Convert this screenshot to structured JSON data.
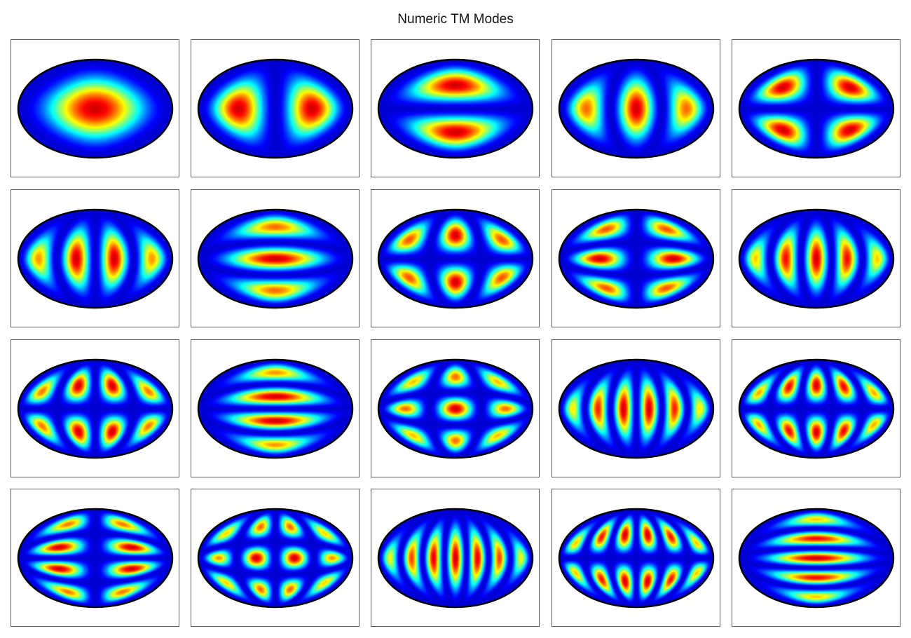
{
  "title": "Numeric TM Modes",
  "colors": {
    "colormap": "jet",
    "boundary": "#000000",
    "frame": "#5a5a5a",
    "background": "#ffffff"
  },
  "chart_data": {
    "type": "heatmap",
    "title": "Numeric TM Modes",
    "grid": {
      "rows": 4,
      "cols": 5
    },
    "domain": "ellipse",
    "aspect_ratio": 1.57,
    "colormap": "jet",
    "axes_visible": false,
    "panels": [
      {
        "mode": 1,
        "nx": 0,
        "ny": 0
      },
      {
        "mode": 2,
        "nx": 1,
        "ny": 0
      },
      {
        "mode": 3,
        "nx": 0,
        "ny": 1
      },
      {
        "mode": 4,
        "nx": 2,
        "ny": 0
      },
      {
        "mode": 5,
        "nx": 1,
        "ny": 1
      },
      {
        "mode": 6,
        "nx": 3,
        "ny": 0
      },
      {
        "mode": 7,
        "nx": 0,
        "ny": 2
      },
      {
        "mode": 8,
        "nx": 2,
        "ny": 1
      },
      {
        "mode": 9,
        "nx": 1,
        "ny": 2
      },
      {
        "mode": 10,
        "nx": 4,
        "ny": 0
      },
      {
        "mode": 11,
        "nx": 3,
        "ny": 1
      },
      {
        "mode": 12,
        "nx": 0,
        "ny": 3
      },
      {
        "mode": 13,
        "nx": 2,
        "ny": 2
      },
      {
        "mode": 14,
        "nx": 5,
        "ny": 0
      },
      {
        "mode": 15,
        "nx": 4,
        "ny": 1
      },
      {
        "mode": 16,
        "nx": 1,
        "ny": 3
      },
      {
        "mode": 17,
        "nx": 3,
        "ny": 2
      },
      {
        "mode": 18,
        "nx": 6,
        "ny": 0
      },
      {
        "mode": 19,
        "nx": 5,
        "ny": 1
      },
      {
        "mode": 20,
        "nx": 0,
        "ny": 4
      }
    ]
  }
}
